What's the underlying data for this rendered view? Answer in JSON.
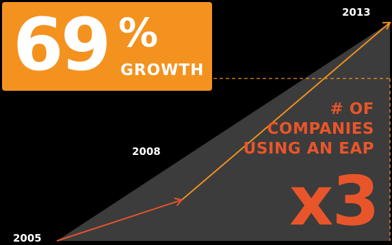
{
  "headline": {
    "number": "69",
    "percent_sign": "%",
    "label": "GROWTH"
  },
  "metric": {
    "lines": [
      "# OF",
      "COMPANIES",
      "USING AN EAP"
    ],
    "multiplier": "x3"
  },
  "colors": {
    "background": "#000000",
    "accent_orange": "#f4921f",
    "accent_red": "#e9552a",
    "triangle_fill": "#3c3c3c"
  },
  "chart_data": {
    "type": "line",
    "x": [
      2005,
      2008,
      2013
    ],
    "x_labels": [
      "2005",
      "2008",
      "2013"
    ],
    "values": [
      1,
      1.375,
      3
    ],
    "xlim": [
      2005,
      2013
    ],
    "ylim": [
      0,
      3
    ],
    "title": "",
    "xlabel": "",
    "ylabel": "",
    "grid": false,
    "annotations": [
      "69% GROWTH",
      "# OF COMPANIES USING AN EAP x3"
    ]
  }
}
